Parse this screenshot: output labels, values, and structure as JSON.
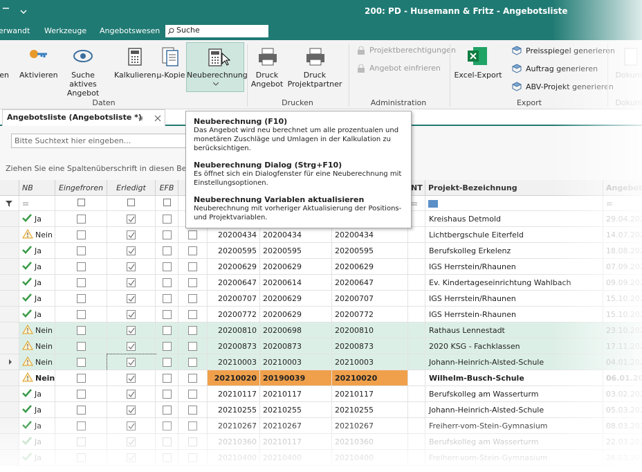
{
  "window": {
    "title": "200: PD - Husemann & Fritz - Angebotsliste"
  },
  "menu": {
    "items": [
      "erwandt",
      "Werkzeuge",
      "Angebotswesen"
    ],
    "search": "Suche"
  },
  "ribbon": {
    "daten": {
      "label": "Daten",
      "buttons": [
        "ren",
        "Aktivieren",
        "Suche aktives Angebot",
        "Kalkulieren",
        "µ-Kopie",
        "Neuberechnung"
      ]
    },
    "drucken": {
      "label": "Drucken",
      "buttons": [
        "Druck Angebot",
        "Druck Projektpartner"
      ]
    },
    "administration": {
      "label": "Administration",
      "buttons": [
        "Projektberechtigungen",
        "Angebot einfrieren"
      ]
    },
    "export": {
      "label": "Export",
      "buttons": [
        "Excel-Export",
        "Preisspiegel generieren",
        "Auftrag generieren",
        "ABV-Projekt generieren"
      ]
    },
    "dokumente": {
      "label": "Dokum",
      "buttons": [
        "Dokum"
      ]
    }
  },
  "tab": {
    "title": "Angebotsliste (Angebotsliste *)"
  },
  "search": {
    "placeholder": "Bitte Suchtext hier eingeben..."
  },
  "group_panel": {
    "text": "Ziehen Sie eine Spaltenüberschrift in diesen Bereich, u"
  },
  "tooltip": {
    "items": [
      {
        "title": "Neuberechnung (F10)",
        "text": "Das Angebot wird neu berechnet um alle prozentualen und monetären Zuschläge und Umlagen in der Kalkulation zu berücksichtigen."
      },
      {
        "title": "Neuberechnung Dialog (Strg+F10)",
        "text": "Es öffnet sich ein Dialogfenster für eine Neuberechnung mit Einstellungsoptionen."
      },
      {
        "title": "Neuberechnung Variablen aktualisieren",
        "text": "Neuberechnung mit vorheriger Aktualisierung der Positions- und Projektvariablen."
      }
    ]
  },
  "grid": {
    "headers": {
      "nb": "NB",
      "eingefroren": "Eingefroren",
      "erledigt": "Erledigt",
      "efb": "EFB",
      "nt": "NT",
      "projekt": "Projekt-Bezeichnung",
      "angebot": "Angebot"
    },
    "rows": [
      {
        "nb": "Ja",
        "a": null,
        "b": null,
        "c": null,
        "name": "Kreishaus Detmold",
        "date": "29.04.202"
      },
      {
        "nb": "Nein",
        "a": "20200434",
        "b": "20200434",
        "c": "20200434",
        "name": "Lichtbergschule Eiterfeld",
        "date": "14.07.202"
      },
      {
        "nb": "Ja",
        "a": "20200595",
        "b": "20200595",
        "c": "20200595",
        "name": "Berufskolleg Erkelenz",
        "date": "18.08.202"
      },
      {
        "nb": "Ja",
        "a": "20200629",
        "b": "20200629",
        "c": "20200629",
        "name": "IGS Herrstein/Rhaunen",
        "date": "07.09.202"
      },
      {
        "nb": "Ja",
        "a": "20200647",
        "b": "20200614",
        "c": "20200647",
        "name": "Ev. Kindertageseinrichtung Wahlbach",
        "date": "09.09.202"
      },
      {
        "nb": "Ja",
        "a": "20200707",
        "b": "20200629",
        "c": "20200707",
        "name": "IGS Herrstein/Rhaunen",
        "date": "15.10.202"
      },
      {
        "nb": "Ja",
        "a": "20200772",
        "b": "20200629",
        "c": "20200772",
        "name": "IGS Herrstein-Rhaunen",
        "date": "15.10.202"
      },
      {
        "nb": "Nein",
        "a": "20200810",
        "b": "20200698",
        "c": "20200810",
        "name": "Rathaus Lennestadt",
        "date": "23.10.202",
        "background": "#dcefe7"
      },
      {
        "nb": "Nein",
        "a": "20200873",
        "b": "20200873",
        "c": "20200873",
        "name": "2020 KSG - Fachklassen",
        "date": "17.11.202",
        "background": "#dcefe7"
      },
      {
        "nb": "Nein",
        "a": "20210003",
        "b": "20210003",
        "c": "20210003",
        "name": "Johann-Heinrich-Alsted-Schule",
        "date": "04.01.202",
        "background": "#dcefe7"
      },
      {
        "nb": "Nein",
        "a": "20210020",
        "b": "20190039",
        "c": "20210020",
        "name": "Wilhelm-Busch-Schule",
        "date": "06.01.202",
        "highlight": "#f0a04b"
      },
      {
        "nb": "Ja",
        "a": "20210117",
        "b": "20210117",
        "c": "20210117",
        "name": "Berufskolleg am Wasserturm",
        "date": "03.02.202"
      },
      {
        "nb": "Ja",
        "a": "20210255",
        "b": "20210255",
        "c": "20210255",
        "name": "Johann-Heinrich-Alsted-Schule",
        "date": "05.03.202"
      },
      {
        "nb": "Ja",
        "a": "20210267",
        "b": "20210267",
        "c": "20210267",
        "name": "Freiherr-vom-Stein-Gymnasium",
        "date": "08.03.202"
      },
      {
        "nb": "Ja",
        "a": "20210360",
        "b": "20210117",
        "c": "20210360",
        "name": "Berufskolleg am Wasserturm",
        "date": "22.03.202"
      },
      {
        "nb": "Ja",
        "a": "20210400",
        "b": "20210400",
        "c": "20210400",
        "name": "Freiherr-vom-Stein-Gymnasium",
        "date": "26.03.202"
      }
    ]
  }
}
